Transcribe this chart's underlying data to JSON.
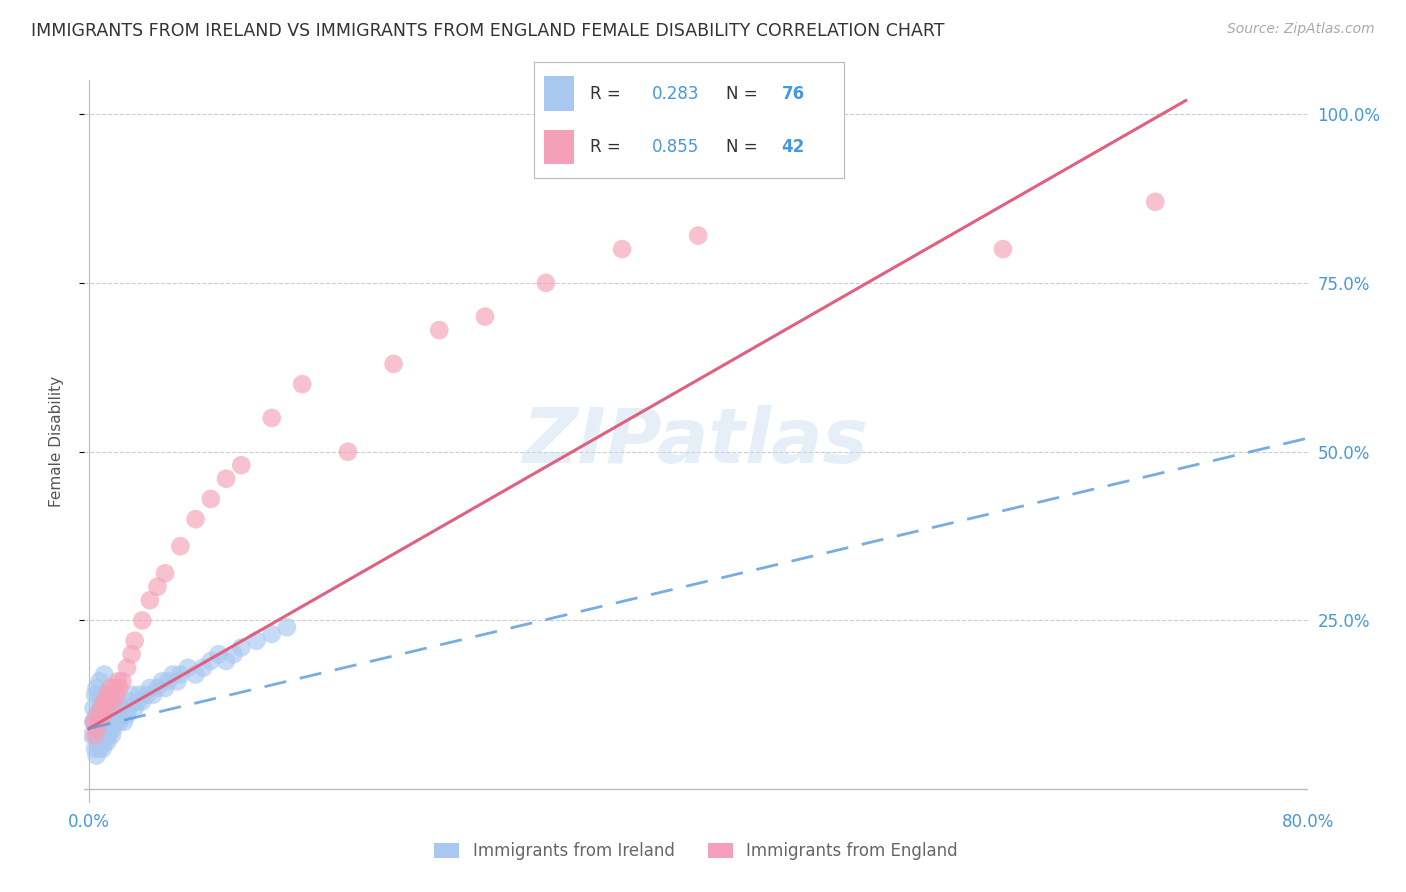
{
  "title": "IMMIGRANTS FROM IRELAND VS IMMIGRANTS FROM ENGLAND FEMALE DISABILITY CORRELATION CHART",
  "source": "Source: ZipAtlas.com",
  "ylabel": "Female Disability",
  "xlim": [
    0.0,
    0.8
  ],
  "ylim": [
    0.0,
    1.05
  ],
  "ireland_R": 0.283,
  "ireland_N": 76,
  "england_R": 0.855,
  "england_N": 42,
  "ireland_color": "#a8c8f0",
  "england_color": "#f4a0b8",
  "ireland_line_color": "#5599dd",
  "england_line_color": "#e06080",
  "watermark": "ZIPatlas",
  "ireland_scatter_x": [
    0.002,
    0.003,
    0.003,
    0.004,
    0.004,
    0.004,
    0.005,
    0.005,
    0.005,
    0.005,
    0.006,
    0.006,
    0.006,
    0.007,
    0.007,
    0.007,
    0.007,
    0.008,
    0.008,
    0.008,
    0.009,
    0.009,
    0.009,
    0.01,
    0.01,
    0.01,
    0.01,
    0.01,
    0.011,
    0.011,
    0.012,
    0.012,
    0.013,
    0.013,
    0.014,
    0.014,
    0.015,
    0.015,
    0.016,
    0.016,
    0.017,
    0.018,
    0.019,
    0.02,
    0.021,
    0.022,
    0.023,
    0.025,
    0.026,
    0.027,
    0.028,
    0.03,
    0.032,
    0.033,
    0.035,
    0.038,
    0.04,
    0.042,
    0.045,
    0.048,
    0.05,
    0.052,
    0.055,
    0.058,
    0.06,
    0.065,
    0.07,
    0.075,
    0.08,
    0.085,
    0.09,
    0.095,
    0.1,
    0.11,
    0.12,
    0.13
  ],
  "ireland_scatter_y": [
    0.08,
    0.1,
    0.12,
    0.06,
    0.1,
    0.14,
    0.05,
    0.08,
    0.11,
    0.15,
    0.07,
    0.1,
    0.14,
    0.06,
    0.09,
    0.12,
    0.16,
    0.07,
    0.1,
    0.14,
    0.06,
    0.09,
    0.13,
    0.07,
    0.09,
    0.11,
    0.14,
    0.17,
    0.08,
    0.12,
    0.07,
    0.11,
    0.08,
    0.12,
    0.09,
    0.13,
    0.08,
    0.12,
    0.09,
    0.13,
    0.1,
    0.11,
    0.12,
    0.1,
    0.11,
    0.12,
    0.1,
    0.11,
    0.12,
    0.13,
    0.14,
    0.12,
    0.13,
    0.14,
    0.13,
    0.14,
    0.15,
    0.14,
    0.15,
    0.16,
    0.15,
    0.16,
    0.17,
    0.16,
    0.17,
    0.18,
    0.17,
    0.18,
    0.19,
    0.2,
    0.19,
    0.2,
    0.21,
    0.22,
    0.23,
    0.24
  ],
  "england_scatter_x": [
    0.003,
    0.004,
    0.005,
    0.006,
    0.007,
    0.008,
    0.009,
    0.01,
    0.011,
    0.012,
    0.013,
    0.014,
    0.015,
    0.016,
    0.017,
    0.018,
    0.019,
    0.02,
    0.022,
    0.025,
    0.028,
    0.03,
    0.035,
    0.04,
    0.045,
    0.05,
    0.06,
    0.07,
    0.08,
    0.09,
    0.1,
    0.12,
    0.14,
    0.17,
    0.2,
    0.23,
    0.26,
    0.3,
    0.35,
    0.4,
    0.6,
    0.7
  ],
  "england_scatter_y": [
    0.1,
    0.08,
    0.09,
    0.11,
    0.1,
    0.12,
    0.11,
    0.13,
    0.12,
    0.14,
    0.13,
    0.15,
    0.14,
    0.13,
    0.15,
    0.14,
    0.16,
    0.15,
    0.16,
    0.18,
    0.2,
    0.22,
    0.25,
    0.28,
    0.3,
    0.32,
    0.36,
    0.4,
    0.43,
    0.46,
    0.48,
    0.55,
    0.6,
    0.5,
    0.63,
    0.68,
    0.7,
    0.75,
    0.8,
    0.82,
    0.8,
    0.87
  ],
  "england_line_x": [
    0.0,
    0.72
  ],
  "england_line_y": [
    0.09,
    1.02
  ],
  "ireland_line_x": [
    0.0,
    0.8
  ],
  "ireland_line_y": [
    0.09,
    0.52
  ]
}
